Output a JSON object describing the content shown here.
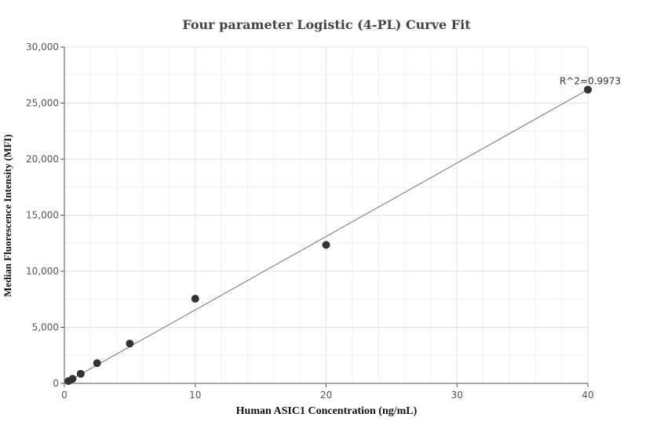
{
  "chart_data": {
    "type": "scatter",
    "title": "Four parameter Logistic (4-PL) Curve Fit",
    "xlabel": "Human ASIC1 Concentration (ng/mL)",
    "ylabel": "Median Fluorescence Intensity (MFI)",
    "xlim": [
      0,
      40
    ],
    "ylim": [
      0,
      30000
    ],
    "x_ticks": [
      0,
      10,
      20,
      30,
      40
    ],
    "x_tick_labels": [
      "0",
      "10",
      "20",
      "30",
      "40"
    ],
    "y_ticks": [
      0,
      5000,
      10000,
      15000,
      20000,
      25000,
      30000
    ],
    "y_tick_labels": [
      "0",
      "5,000",
      "10,000",
      "15,000",
      "20,000",
      "25,000",
      "30,000"
    ],
    "grid": true,
    "series": [
      {
        "points": [
          {
            "x": 0.3125,
            "y": 200
          },
          {
            "x": 0.625,
            "y": 400
          },
          {
            "x": 1.25,
            "y": 850
          },
          {
            "x": 2.5,
            "y": 1800
          },
          {
            "x": 5,
            "y": 3550
          },
          {
            "x": 10,
            "y": 7550
          },
          {
            "x": 20,
            "y": 12350
          },
          {
            "x": 40,
            "y": 26200
          }
        ]
      }
    ],
    "fit_line": {
      "x": [
        0,
        40
      ],
      "y": [
        0,
        26200
      ]
    },
    "annotation": "R^2=0.9973",
    "colors": {
      "points": "#333333",
      "fit_line": "#888888",
      "grid": "#e6e6e6",
      "axis": "#555555"
    }
  }
}
